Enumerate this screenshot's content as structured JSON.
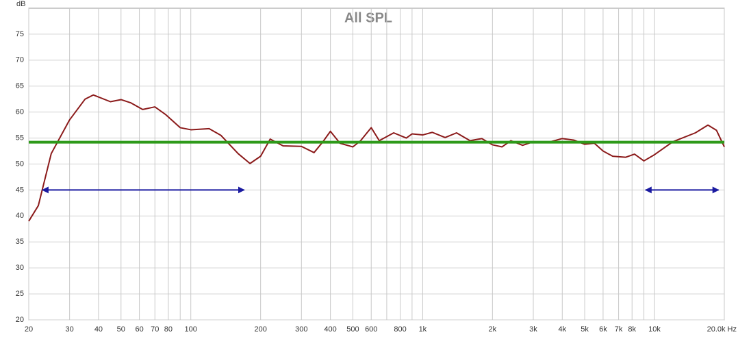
{
  "chart_data": {
    "type": "line",
    "title": "All SPL",
    "y_label": "dB",
    "x_log": true,
    "grid": true,
    "xlim": [
      20,
      20000
    ],
    "ylim": [
      20,
      80
    ],
    "yticks": [
      20,
      25,
      30,
      35,
      40,
      45,
      50,
      55,
      60,
      65,
      70,
      75
    ],
    "xticks": [
      20,
      30,
      40,
      50,
      60,
      70,
      80,
      100,
      200,
      300,
      400,
      500,
      600,
      800,
      {
        "value": 1000,
        "label": "1k"
      },
      {
        "value": 2000,
        "label": "2k"
      },
      {
        "value": 3000,
        "label": "3k"
      },
      {
        "value": 4000,
        "label": "4k"
      },
      {
        "value": 5000,
        "label": "5k"
      },
      {
        "value": 6000,
        "label": "6k"
      },
      {
        "value": 7000,
        "label": "7k"
      },
      {
        "value": 8000,
        "label": "8k"
      },
      {
        "value": 10000,
        "label": "10k"
      },
      {
        "value": 20000,
        "label": "20.0k Hz"
      }
    ],
    "x_minor_ticks": [
      90,
      700,
      900,
      9000
    ],
    "series": [
      {
        "color": "#8b1a1a",
        "arrows": false,
        "width": 2,
        "x": [
          20,
          22,
          25,
          30,
          35,
          38,
          45,
          50,
          55,
          62,
          70,
          78,
          90,
          100,
          120,
          135,
          160,
          180,
          200,
          220,
          250,
          300,
          340,
          370,
          400,
          440,
          500,
          540,
          600,
          650,
          750,
          850,
          900,
          1000,
          1100,
          1250,
          1400,
          1600,
          1800,
          2000,
          2200,
          2400,
          2700,
          3000,
          3500,
          4000,
          4500,
          5000,
          5500,
          6000,
          6600,
          7500,
          8200,
          9000,
          10000,
          12000,
          15000,
          17000,
          18500,
          20000
        ],
        "values": [
          39,
          42,
          52,
          58.5,
          62.5,
          63.3,
          62,
          62.4,
          61.8,
          60.5,
          61,
          59.5,
          57,
          56.6,
          56.8,
          55.5,
          52,
          50.1,
          51.5,
          54.8,
          53.5,
          53.4,
          52.2,
          54.2,
          56.3,
          54,
          53.3,
          54.5,
          57,
          54.5,
          56,
          55,
          55.8,
          55.6,
          56.1,
          55.1,
          56,
          54.5,
          54.9,
          53.7,
          53.3,
          54.5,
          53.6,
          54.3,
          54.2,
          54.9,
          54.6,
          53.8,
          54,
          52.5,
          51.5,
          51.3,
          51.9,
          50.6,
          51.8,
          54.3,
          56,
          57.5,
          56.5,
          53.3
        ]
      },
      {
        "color": "#2e9a1a",
        "arrows": false,
        "width": 4,
        "x": [
          20,
          20000
        ],
        "values": [
          54.2,
          54.2
        ]
      },
      {
        "color": "#1a1aa0",
        "arrows": true,
        "width": 2,
        "x": [
          22.9,
          170
        ],
        "values": [
          45,
          45
        ]
      },
      {
        "color": "#1a1aa0",
        "arrows": true,
        "width": 2,
        "x": [
          9140,
          18900
        ],
        "values": [
          45,
          45
        ]
      }
    ]
  }
}
